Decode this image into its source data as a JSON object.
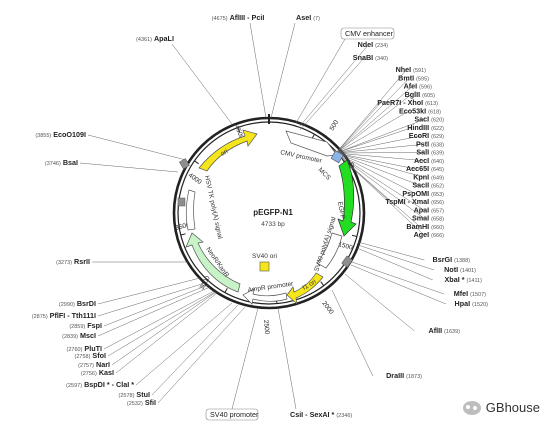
{
  "plasmid": {
    "name": "pEGFP-N1",
    "size": "4733 bp"
  },
  "ticks": [
    "500",
    "1000",
    "1500",
    "2000",
    "2500",
    "3000",
    "3500",
    "4000",
    "4500"
  ],
  "features": [
    {
      "label": "CMV promoter",
      "color": "#ffffff"
    },
    {
      "label": "MCS",
      "color": "#8ab4e6"
    },
    {
      "label": "EGFP",
      "color": "#22dd22"
    },
    {
      "label": "SV40 poly(A) signal",
      "color": "#ffffff"
    },
    {
      "label": "f1 ori",
      "color": "#f5e51b"
    },
    {
      "label": "AmpR promoter",
      "color": "#ffffff"
    },
    {
      "label": "SV40 ori",
      "color": "#f5e51b"
    },
    {
      "label": "NeoR/KanR",
      "color": "#c8f2c8"
    },
    {
      "label": "HSV TK poly(A) signal",
      "color": "#ffffff"
    },
    {
      "label": "ori",
      "color": "#f5e51b"
    }
  ],
  "boxed_labels": [
    "CMV enhancer",
    "SV40 promoter"
  ],
  "enzymes_top": [
    {
      "name": "AflIII - PciI",
      "pos": "(4675)"
    },
    {
      "name": "AseI",
      "pos": "(7)"
    },
    {
      "name": "ApaLI",
      "pos": "(4361)"
    }
  ],
  "enzymes_right": [
    {
      "name": "NdeI",
      "pos": "(234)"
    },
    {
      "name": "SnaBI",
      "pos": "(340)"
    },
    {
      "name": "NheI",
      "pos": "(591)"
    },
    {
      "name": "BmtI",
      "pos": "(595)"
    },
    {
      "name": "AfeI",
      "pos": "(596)"
    },
    {
      "name": "BglII",
      "pos": "(605)"
    },
    {
      "name": "PaeR7I - XhoI",
      "pos": "(613)"
    },
    {
      "name": "Eco53kI",
      "pos": "(618)"
    },
    {
      "name": "SacI",
      "pos": "(620)"
    },
    {
      "name": "HindIII",
      "pos": "(622)"
    },
    {
      "name": "EcoRI",
      "pos": "(629)"
    },
    {
      "name": "PstI",
      "pos": "(638)"
    },
    {
      "name": "SalI",
      "pos": "(639)"
    },
    {
      "name": "AccI",
      "pos": "(640)"
    },
    {
      "name": "Acc65I",
      "pos": "(645)"
    },
    {
      "name": "KpnI",
      "pos": "(649)"
    },
    {
      "name": "SacII",
      "pos": "(652)"
    },
    {
      "name": "PspOMI",
      "pos": "(653)"
    },
    {
      "name": "TspMI - XmaI",
      "pos": "(656)"
    },
    {
      "name": "ApaI",
      "pos": "(657)"
    },
    {
      "name": "SmaI",
      "pos": "(658)"
    },
    {
      "name": "BamHI",
      "pos": "(660)"
    },
    {
      "name": "AgeI",
      "pos": "(666)"
    }
  ],
  "enzymes_right_lower": [
    {
      "name": "BsrGI",
      "pos": "(1388)"
    },
    {
      "name": "NotI",
      "pos": "(1401)"
    },
    {
      "name": "XbaI *",
      "pos": "(1411)"
    },
    {
      "name": "MfeI",
      "pos": "(1507)"
    },
    {
      "name": "HpaI",
      "pos": "(1520)"
    },
    {
      "name": "AflII",
      "pos": "(1639)"
    },
    {
      "name": "DraIII",
      "pos": "(1873)"
    }
  ],
  "enzymes_left": [
    {
      "name": "EcoO109I",
      "pos": "(3855)"
    },
    {
      "name": "BsaI",
      "pos": "(3746)"
    },
    {
      "name": "RsrII",
      "pos": "(3273)"
    },
    {
      "name": "BsrDI",
      "pos": "(2990)"
    },
    {
      "name": "PflFI - Tth111I",
      "pos": "(2875)"
    },
    {
      "name": "FspI",
      "pos": "(2859)"
    },
    {
      "name": "MscI",
      "pos": "(2839)"
    },
    {
      "name": "PluTI",
      "pos": "(2760)"
    },
    {
      "name": "SfoI",
      "pos": "(2758)"
    },
    {
      "name": "NarI",
      "pos": "(2757)"
    },
    {
      "name": "KasI",
      "pos": "(2756)"
    },
    {
      "name": "BspDI * - ClaI *",
      "pos": "(2597)"
    },
    {
      "name": "StuI",
      "pos": "(2578)"
    },
    {
      "name": "SfiI",
      "pos": "(2532)"
    }
  ],
  "enzymes_bottom": [
    {
      "name": "CsiI - SexAI *",
      "pos": "(2346)"
    }
  ],
  "watermark": "GBhouse"
}
